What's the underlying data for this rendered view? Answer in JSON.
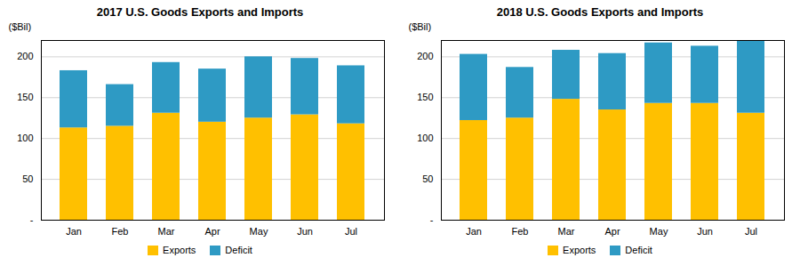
{
  "chart_data": [
    {
      "type": "bar",
      "stacked": true,
      "title": "2017 U.S. Goods Exports and Imports",
      "categories": [
        "Jan",
        "Feb",
        "Mar",
        "Apr",
        "May",
        "Jun",
        "Jul"
      ],
      "series": [
        {
          "name": "Exports",
          "color": "#FFC000",
          "values": [
            113,
            115,
            131,
            120,
            125,
            129,
            118
          ]
        },
        {
          "name": "Deficit",
          "color": "#2E9AC4",
          "values": [
            70,
            51,
            62,
            65,
            75,
            69,
            71
          ]
        }
      ],
      "ylabel": "($Bil)",
      "ylim": [
        0,
        220
      ],
      "yticks": [
        {
          "value": 0,
          "label": "-"
        },
        50,
        100,
        150,
        200
      ],
      "grid": true,
      "legend": "bottom"
    },
    {
      "type": "bar",
      "stacked": true,
      "title": "2018 U.S. Goods Exports and Imports",
      "categories": [
        "Jan",
        "Feb",
        "Mar",
        "Apr",
        "May",
        "Jun",
        "Jul"
      ],
      "series": [
        {
          "name": "Exports",
          "color": "#FFC000",
          "values": [
            122,
            125,
            148,
            135,
            143,
            143,
            131
          ]
        },
        {
          "name": "Deficit",
          "color": "#2E9AC4",
          "values": [
            81,
            62,
            60,
            69,
            74,
            70,
            88
          ]
        }
      ],
      "ylabel": "($Bil)",
      "ylim": [
        0,
        220
      ],
      "yticks": [
        {
          "value": 0,
          "label": "-"
        },
        50,
        100,
        150,
        200
      ],
      "grid": true,
      "legend": "bottom"
    }
  ]
}
